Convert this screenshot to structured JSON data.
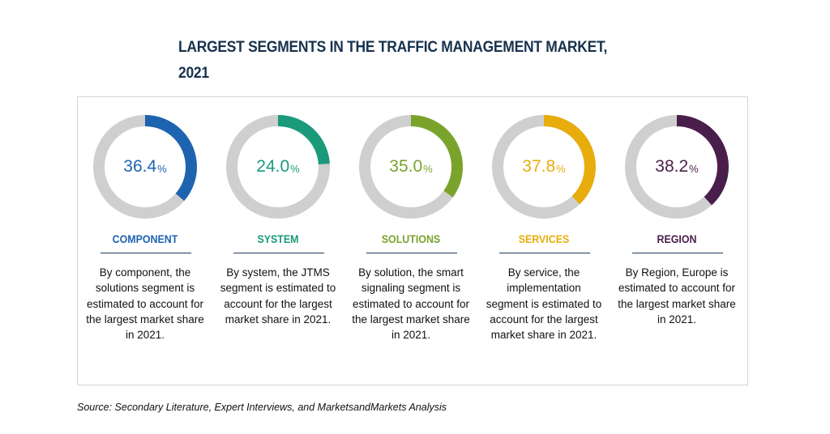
{
  "title": "LARGEST SEGMENTS IN THE TRAFFIC MANAGEMENT MARKET, 2021",
  "source": "Source: Secondary Literature, Expert Interviews, and MarketsandMarkets Analysis",
  "track_color": "#cfcfcf",
  "chart_data": [
    {
      "type": "pie",
      "label": "COMPONENT",
      "value_text": "36.4",
      "unit": "%",
      "value": 36.4,
      "color": "#1e63b0",
      "description": "By component, the solutions segment is estimated to account for the largest market share in 2021."
    },
    {
      "type": "pie",
      "label": "SYSTEM",
      "value_text": "24.0",
      "unit": "%",
      "value": 24.0,
      "color": "#1a9a7a",
      "description": "By system, the JTMS segment is estimated to account for the largest market share in 2021."
    },
    {
      "type": "pie",
      "label": "SOLUTIONS",
      "value_text": "35.0",
      "unit": "%",
      "value": 35.0,
      "color": "#7aa32c",
      "description": "By solution, the smart signaling segment is estimated to account for the largest market share in 2021."
    },
    {
      "type": "pie",
      "label": "SERVICES",
      "value_text": "37.8",
      "unit": "%",
      "value": 37.8,
      "color": "#e8ad0c",
      "description": "By service, the implementation segment is estimated to account for the largest market share in 2021."
    },
    {
      "type": "pie",
      "label": "REGION",
      "value_text": "38.2",
      "unit": "%",
      "value": 38.2,
      "color": "#4a1e4a",
      "description": "By Region, Europe is estimated to account for the largest market share in 2021."
    }
  ]
}
